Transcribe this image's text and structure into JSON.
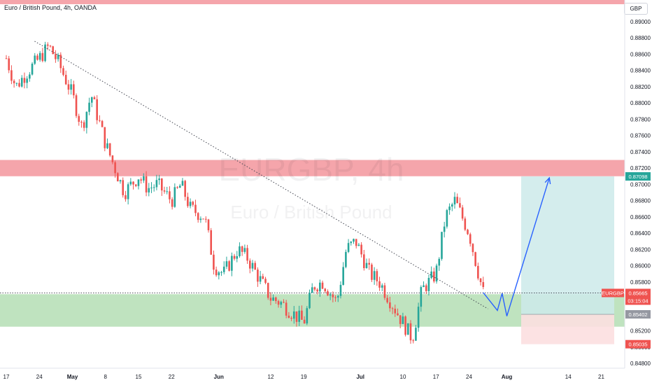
{
  "header": {
    "title": "Euro / British Pound, 4h, OANDA",
    "currency_button": "GBP"
  },
  "watermark": {
    "symbol": "EURGBP, 4h",
    "name": "Euro / British Pound"
  },
  "colors": {
    "up": "#26a69a",
    "down": "#ef5350",
    "resistance_zone": "#f5a5ab",
    "support_zone": "#bfe3bf",
    "target_zone": "#cdeaea",
    "stop_zone": "#fcdfe0",
    "projection": "#2962ff",
    "trendline": "#434651"
  },
  "price_scale": {
    "ticks": [
      "0.89000",
      "0.88800",
      "0.88600",
      "0.88400",
      "0.88200",
      "0.88000",
      "0.87800",
      "0.87600",
      "0.87400",
      "0.87200",
      "0.87000",
      "0.86800",
      "0.86600",
      "0.86400",
      "0.86200",
      "0.86000",
      "0.85800",
      "0.85600",
      "0.85400",
      "0.85200",
      "0.85000",
      "0.84800"
    ],
    "labels": [
      {
        "text": "0.87098",
        "kind": "target"
      },
      {
        "text": "EURGBP",
        "kind": "symbol"
      },
      {
        "text": "0.85665",
        "kind": "last"
      },
      {
        "text": "03:15:04",
        "kind": "countdown"
      },
      {
        "text": "0.85402",
        "kind": "entry"
      },
      {
        "text": "0.85035",
        "kind": "stop"
      }
    ]
  },
  "time_axis": {
    "ticks": [
      "17",
      "24",
      "May",
      "8",
      "15",
      "22",
      "Jun",
      "12",
      "19",
      "Jul",
      "10",
      "17",
      "24",
      "Aug",
      "14",
      "21"
    ]
  },
  "chart_data": {
    "type": "candlestick",
    "symbol": "EURGBP",
    "timeframe": "4h",
    "ylim": [
      0.8475,
      0.892
    ],
    "x": [
      "Apr 17",
      "Apr 19",
      "Apr 21",
      "Apr 24",
      "Apr 26",
      "Apr 28",
      "May 1",
      "May 3",
      "May 5",
      "May 8",
      "May 10",
      "May 12",
      "May 15",
      "May 17",
      "May 19",
      "May 22",
      "May 24",
      "May 26",
      "May 29",
      "May 31",
      "Jun 2",
      "Jun 5",
      "Jun 7",
      "Jun 9",
      "Jun 12",
      "Jun 14",
      "Jun 16",
      "Jun 19",
      "Jun 21",
      "Jun 23",
      "Jun 26",
      "Jun 28",
      "Jun 30",
      "Jul 3",
      "Jul 5",
      "Jul 7",
      "Jul 10",
      "Jul 12",
      "Jul 14",
      "Jul 17",
      "Jul 19",
      "Jul 21",
      "Jul 24",
      "Jul 26",
      "Jul 27"
    ],
    "close": [
      0.8855,
      0.882,
      0.8835,
      0.8855,
      0.887,
      0.885,
      0.881,
      0.877,
      0.881,
      0.875,
      0.872,
      0.869,
      0.871,
      0.8695,
      0.87,
      0.868,
      0.87,
      0.867,
      0.866,
      0.86,
      0.859,
      0.862,
      0.861,
      0.859,
      0.856,
      0.8555,
      0.8545,
      0.853,
      0.8575,
      0.858,
      0.8555,
      0.862,
      0.863,
      0.859,
      0.858,
      0.856,
      0.853,
      0.851,
      0.857,
      0.859,
      0.866,
      0.868,
      0.864,
      0.859,
      0.8567
    ],
    "levels": {
      "resistance_zone": [
        0.871,
        0.873
      ],
      "support_zone": [
        0.8525,
        0.8565
      ],
      "last_price": 0.85665,
      "target": 0.87098,
      "entry": 0.85402,
      "stop": 0.85035
    },
    "trendline": [
      {
        "x": "Apr 23",
        "y": 0.8876
      },
      {
        "x": "Jul 28",
        "y": 0.8547
      }
    ],
    "projection": [
      {
        "x": "Jul 27",
        "y": 0.8567
      },
      {
        "x": "Jul 30",
        "y": 0.8545
      },
      {
        "x": "Jul 31",
        "y": 0.8566
      },
      {
        "x": "Aug 1",
        "y": 0.8538
      },
      {
        "x": "Aug 10",
        "y": 0.8708
      }
    ],
    "legend": "none",
    "grid": false
  }
}
